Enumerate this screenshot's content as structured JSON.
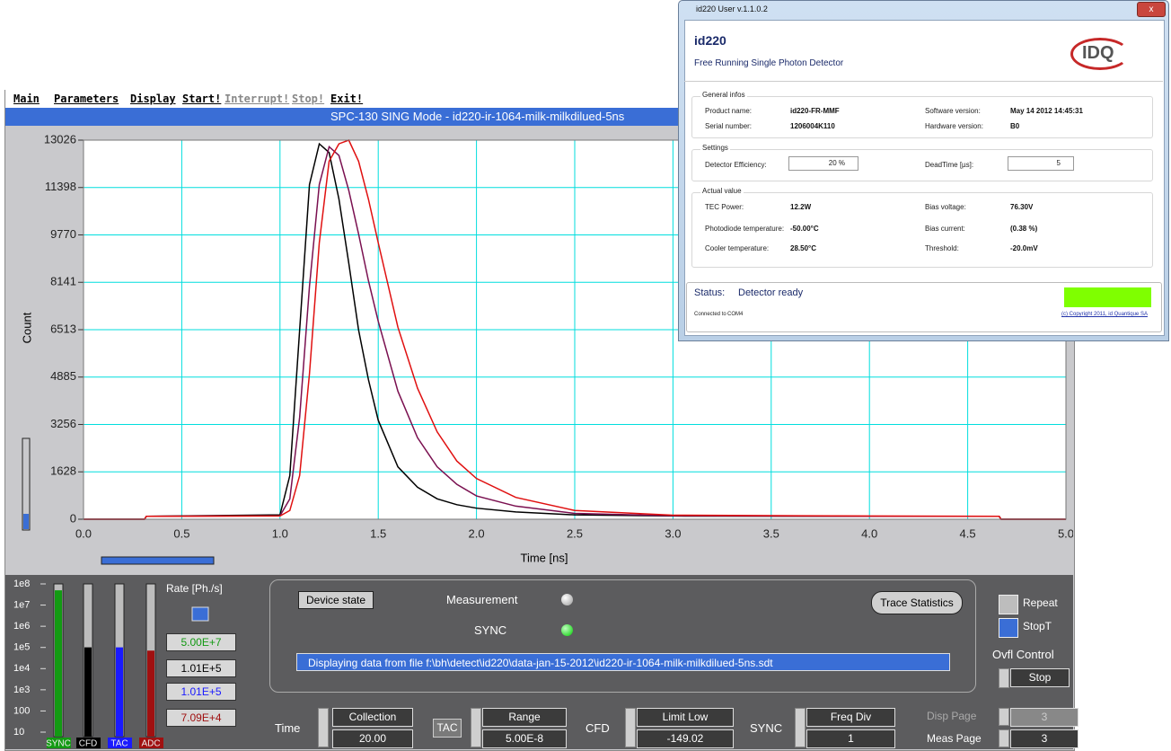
{
  "menu": [
    "Main",
    "Parameters",
    "Display",
    "Start!",
    "Interrupt!",
    "Stop!",
    "Exit!"
  ],
  "window_title": "SPC-130  SING Mode - id220-ir-1064-milk-milkdilued-5ns",
  "chart_data": {
    "type": "line",
    "x_label": "Time [ns]",
    "y_label": "Count",
    "x": [
      0,
      0.31,
      0.32,
      1.0,
      1.05,
      1.1,
      1.15,
      1.2,
      1.25,
      1.3,
      1.35,
      1.4,
      1.45,
      1.5,
      1.6,
      1.7,
      1.8,
      1.9,
      2.0,
      2.2,
      2.5,
      3.0,
      4.0,
      4.66,
      4.67,
      5.0
    ],
    "series": [
      {
        "color": "#000000",
        "values": [
          0,
          0,
          100,
          150,
          1500,
          6500,
          11500,
          12900,
          12600,
          11000,
          8800,
          6500,
          4800,
          3400,
          1800,
          1100,
          700,
          500,
          380,
          250,
          150,
          110,
          100,
          100,
          0,
          0
        ]
      },
      {
        "color": "#7a1050",
        "values": [
          0,
          0,
          100,
          120,
          700,
          3500,
          8000,
          11500,
          12800,
          12500,
          11300,
          9800,
          8200,
          6800,
          4400,
          2800,
          1800,
          1200,
          800,
          450,
          200,
          120,
          100,
          100,
          0,
          0
        ]
      },
      {
        "color": "#e01010",
        "values": [
          0,
          0,
          100,
          110,
          300,
          1500,
          5000,
          9500,
          12300,
          12900,
          13026,
          12300,
          11000,
          9500,
          6600,
          4500,
          3000,
          2000,
          1400,
          750,
          300,
          140,
          110,
          100,
          0,
          0
        ]
      }
    ],
    "xlim": [
      0,
      5
    ],
    "ylim": [
      0,
      13026
    ],
    "xticks": [
      {
        "value": 0,
        "label": "0.0"
      },
      0.5,
      {
        "value": 1,
        "label": "1.0"
      },
      1.5,
      {
        "value": 2,
        "label": "2.0"
      },
      2.5,
      {
        "value": 3,
        "label": "3.0"
      },
      3.5,
      {
        "value": 4,
        "label": "4.0"
      },
      4.5,
      {
        "value": 5,
        "label": "5.0"
      }
    ],
    "yticks": [
      0,
      1628,
      3256,
      4885,
      6513,
      8141,
      9770,
      11398,
      13026
    ],
    "grid": true
  },
  "rate_panel": {
    "title": "Rate [Ph./s]",
    "log_scale": true,
    "lim": [
      10,
      100000000
    ],
    "ticks": [
      {
        "value": 100000000,
        "label": "1e8"
      },
      {
        "value": 10000000,
        "label": "1e7"
      },
      {
        "value": 1000000,
        "label": "1e6"
      },
      {
        "value": 100000,
        "label": "1e5"
      },
      {
        "value": 10000,
        "label": "1e4"
      },
      {
        "value": 1000,
        "label": "1e3"
      },
      100,
      10
    ],
    "meters": [
      {
        "name": "SYNC",
        "color": "#139a13",
        "value": 50000000,
        "label": "5.00E+7"
      },
      {
        "name": "CFD",
        "color": "#000000",
        "value": 101000,
        "label": "1.01E+5"
      },
      {
        "name": "TAC",
        "color": "#1a1aff",
        "value": 101000,
        "label": "1.01E+5"
      },
      {
        "name": "ADC",
        "color": "#a01010",
        "value": 70900,
        "label": "7.09E+4"
      }
    ]
  },
  "state_panel": {
    "device_state": "Device state",
    "measurement": "Measurement",
    "sync": "SYNC",
    "trace_statistics": "Trace Statistics",
    "message": "Displaying data from file f:\\bh\\detect\\id220\\data-jan-15-2012\\id220-ir-1064-milk-milkdilued-5ns.sdt"
  },
  "side_controls": {
    "repeat": "Repeat",
    "stopt": "StopT",
    "ovfl_control": "Ovfl Control",
    "ovfl_value": "Stop"
  },
  "controls": [
    {
      "label": "Time",
      "field": "Collection",
      "value": "20.00"
    },
    {
      "label": "TAC",
      "field": "Range",
      "value": "5.00E-8"
    },
    {
      "label": "CFD",
      "field": "Limit Low",
      "value": "-149.02"
    },
    {
      "label": "SYNC",
      "field": "Freq Div",
      "value": "1"
    }
  ],
  "pages": [
    {
      "label": "Disp Page",
      "value": "3"
    },
    {
      "label": "Meas Page",
      "value": "3"
    }
  ],
  "overlay": {
    "title": "id220 User v.1.1.0.2",
    "header": "id220",
    "subtitle": "Free Running Single Photon Detector",
    "logo": "IDQ",
    "general": {
      "title": "General infos",
      "rows": [
        [
          "Product name:",
          "id220-FR-MMF",
          "Software version:",
          "May 14 2012 14:45:31"
        ],
        [
          "Serial number:",
          "1206004K110",
          "Hardware version:",
          "B0"
        ]
      ]
    },
    "settings": {
      "title": "Settings",
      "efficiency_label": "Detector Efficiency:",
      "efficiency": "20 %",
      "deadtime_label": "DeadTime [µs]:",
      "deadtime": "5"
    },
    "actual": {
      "title": "Actual value",
      "rows": [
        [
          "TEC Power:",
          "12.2W",
          "Bias voltage:",
          "76.30V"
        ],
        [
          "Photodiode temperature:",
          "-50.00°C",
          "Bias current:",
          "(0.38 %)"
        ],
        [
          "Cooler temperature:",
          "28.50°C",
          "Threshold:",
          "-20.0mV"
        ]
      ]
    },
    "status_label": "Status:",
    "status": "Detector ready",
    "connected_label": "Connected to",
    "port": "COM4",
    "copyright": "(c) Copyright 2011, id Quantique SA"
  }
}
